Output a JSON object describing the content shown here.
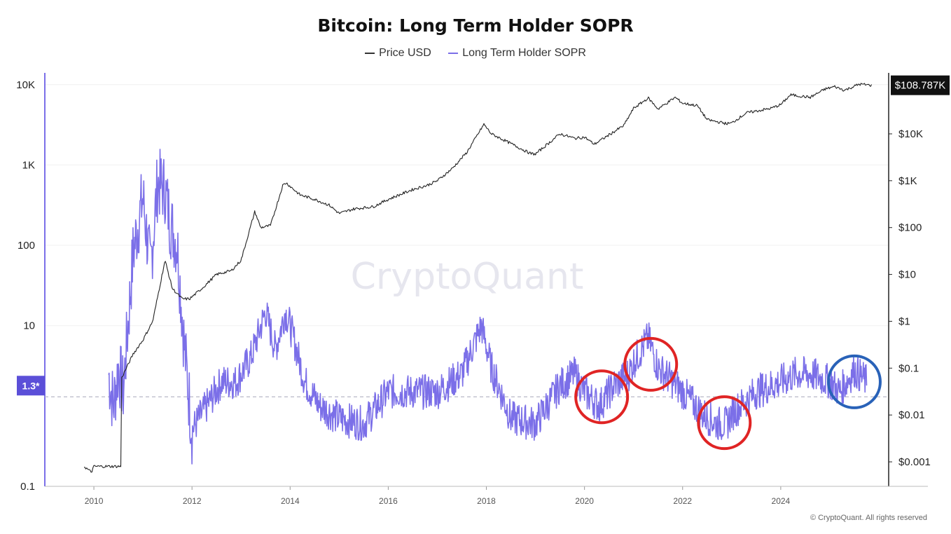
{
  "chart_data": {
    "type": "line",
    "title": "Bitcoin: Long Term Holder SOPR",
    "legend": [
      {
        "name": "Price USD",
        "color": "#333333"
      },
      {
        "name": "Long Term Holder SOPR",
        "color": "#7b6fe8"
      }
    ],
    "watermark": "CryptoQuant",
    "copyright": "© CryptoQuant. All rights reserved",
    "x_range": [
      2009.0,
      2026.2
    ],
    "x_ticks": [
      "2010",
      "2012",
      "2014",
      "2016",
      "2018",
      "2020",
      "2022",
      "2024"
    ],
    "left_axis": {
      "scale": "log",
      "range": [
        0.1,
        14000
      ],
      "ticks": [
        "10K",
        "1K",
        "100",
        "10",
        "0.1"
      ],
      "marker_label": "1.3*",
      "marker_value": 1.3
    },
    "right_axis": {
      "scale": "log",
      "range": [
        0.0003,
        200000
      ],
      "ticks": [
        "$10K",
        "$1K",
        "$100",
        "$10",
        "$1",
        "$0.1",
        "$0.01",
        "$0.001"
      ],
      "current_price_label": "$108.787K",
      "current_price_value": 108787
    },
    "series": [
      {
        "name": "Price USD",
        "axis": "right",
        "color": "#222222",
        "x": [
          2009.8,
          2009.95,
          2010.0,
          2010.55,
          2010.56,
          2010.8,
          2011.0,
          2011.2,
          2011.45,
          2011.6,
          2011.8,
          2011.95,
          2012.2,
          2012.5,
          2012.8,
          2013.0,
          2013.28,
          2013.4,
          2013.6,
          2013.85,
          2013.92,
          2014.2,
          2014.5,
          2014.8,
          2015.0,
          2015.3,
          2015.7,
          2016.0,
          2016.5,
          2016.8,
          2017.0,
          2017.3,
          2017.6,
          2017.95,
          2018.1,
          2018.4,
          2018.9,
          2019.0,
          2019.5,
          2019.8,
          2020.0,
          2020.2,
          2020.5,
          2020.8,
          2021.0,
          2021.3,
          2021.5,
          2021.85,
          2022.0,
          2022.3,
          2022.5,
          2022.9,
          2023.0,
          2023.3,
          2023.8,
          2024.0,
          2024.2,
          2024.6,
          2024.9,
          2025.1,
          2025.3,
          2025.6,
          2025.85
        ],
        "values": [
          0.0008,
          0.0006,
          0.0008,
          0.0008,
          0.06,
          0.2,
          0.4,
          1,
          20,
          5,
          3,
          3,
          5,
          10,
          12,
          20,
          220,
          100,
          110,
          800,
          900,
          500,
          400,
          300,
          200,
          250,
          280,
          400,
          650,
          800,
          1000,
          1800,
          4000,
          16000,
          10000,
          7000,
          3800,
          3700,
          10000,
          8000,
          8500,
          6000,
          9500,
          15000,
          35000,
          58000,
          34000,
          60000,
          45000,
          40000,
          20000,
          16500,
          17000,
          28000,
          35000,
          42000,
          68000,
          60000,
          90000,
          102000,
          85000,
          115000,
          108787
        ]
      },
      {
        "name": "Long Term Holder SOPR",
        "axis": "left",
        "color": "#7b6fe8",
        "x": [
          2010.3,
          2010.4,
          2010.5,
          2010.6,
          2010.8,
          2011.0,
          2011.15,
          2011.3,
          2011.45,
          2011.55,
          2011.7,
          2011.85,
          2012.0,
          2012.3,
          2012.6,
          2012.9,
          2013.2,
          2013.5,
          2013.7,
          2013.9,
          2014.0,
          2014.3,
          2014.6,
          2015.0,
          2015.5,
          2016.0,
          2016.5,
          2017.0,
          2017.5,
          2017.9,
          2018.1,
          2018.5,
          2019.0,
          2019.5,
          2019.8,
          2020.0,
          2020.3,
          2020.6,
          2020.9,
          2021.0,
          2021.3,
          2021.5,
          2021.8,
          2022.0,
          2022.4,
          2022.7,
          2022.9,
          2023.0,
          2023.5,
          2024.0,
          2024.3,
          2024.6,
          2025.0,
          2025.2,
          2025.5,
          2025.75
        ],
        "values": [
          2.5,
          1.0,
          3.0,
          1.5,
          80,
          400,
          50,
          600,
          500,
          200,
          100,
          5,
          0.5,
          1.0,
          2.0,
          2.0,
          4.0,
          15,
          5,
          15,
          10,
          2.0,
          1.0,
          0.7,
          0.6,
          1.5,
          1.5,
          1.5,
          2.5,
          10,
          3.0,
          0.7,
          0.6,
          1.8,
          2.5,
          1.5,
          1.0,
          1.8,
          2.5,
          3.5,
          7.0,
          3.0,
          2.0,
          1.5,
          0.8,
          0.6,
          0.6,
          0.8,
          1.5,
          2.0,
          2.5,
          2.5,
          2.0,
          1.5,
          2.8,
          2.0
        ]
      }
    ],
    "annotations": [
      {
        "shape": "circle",
        "color": "#e02424",
        "x": 2020.35,
        "y_left": 1.3
      },
      {
        "shape": "circle",
        "color": "#e02424",
        "x": 2021.35,
        "y_left": 3.3
      },
      {
        "shape": "circle",
        "color": "#e02424",
        "x": 2022.85,
        "y_left": 0.62
      },
      {
        "shape": "circle",
        "color": "#2962b8",
        "x": 2025.5,
        "y_left": 2.0
      }
    ]
  }
}
